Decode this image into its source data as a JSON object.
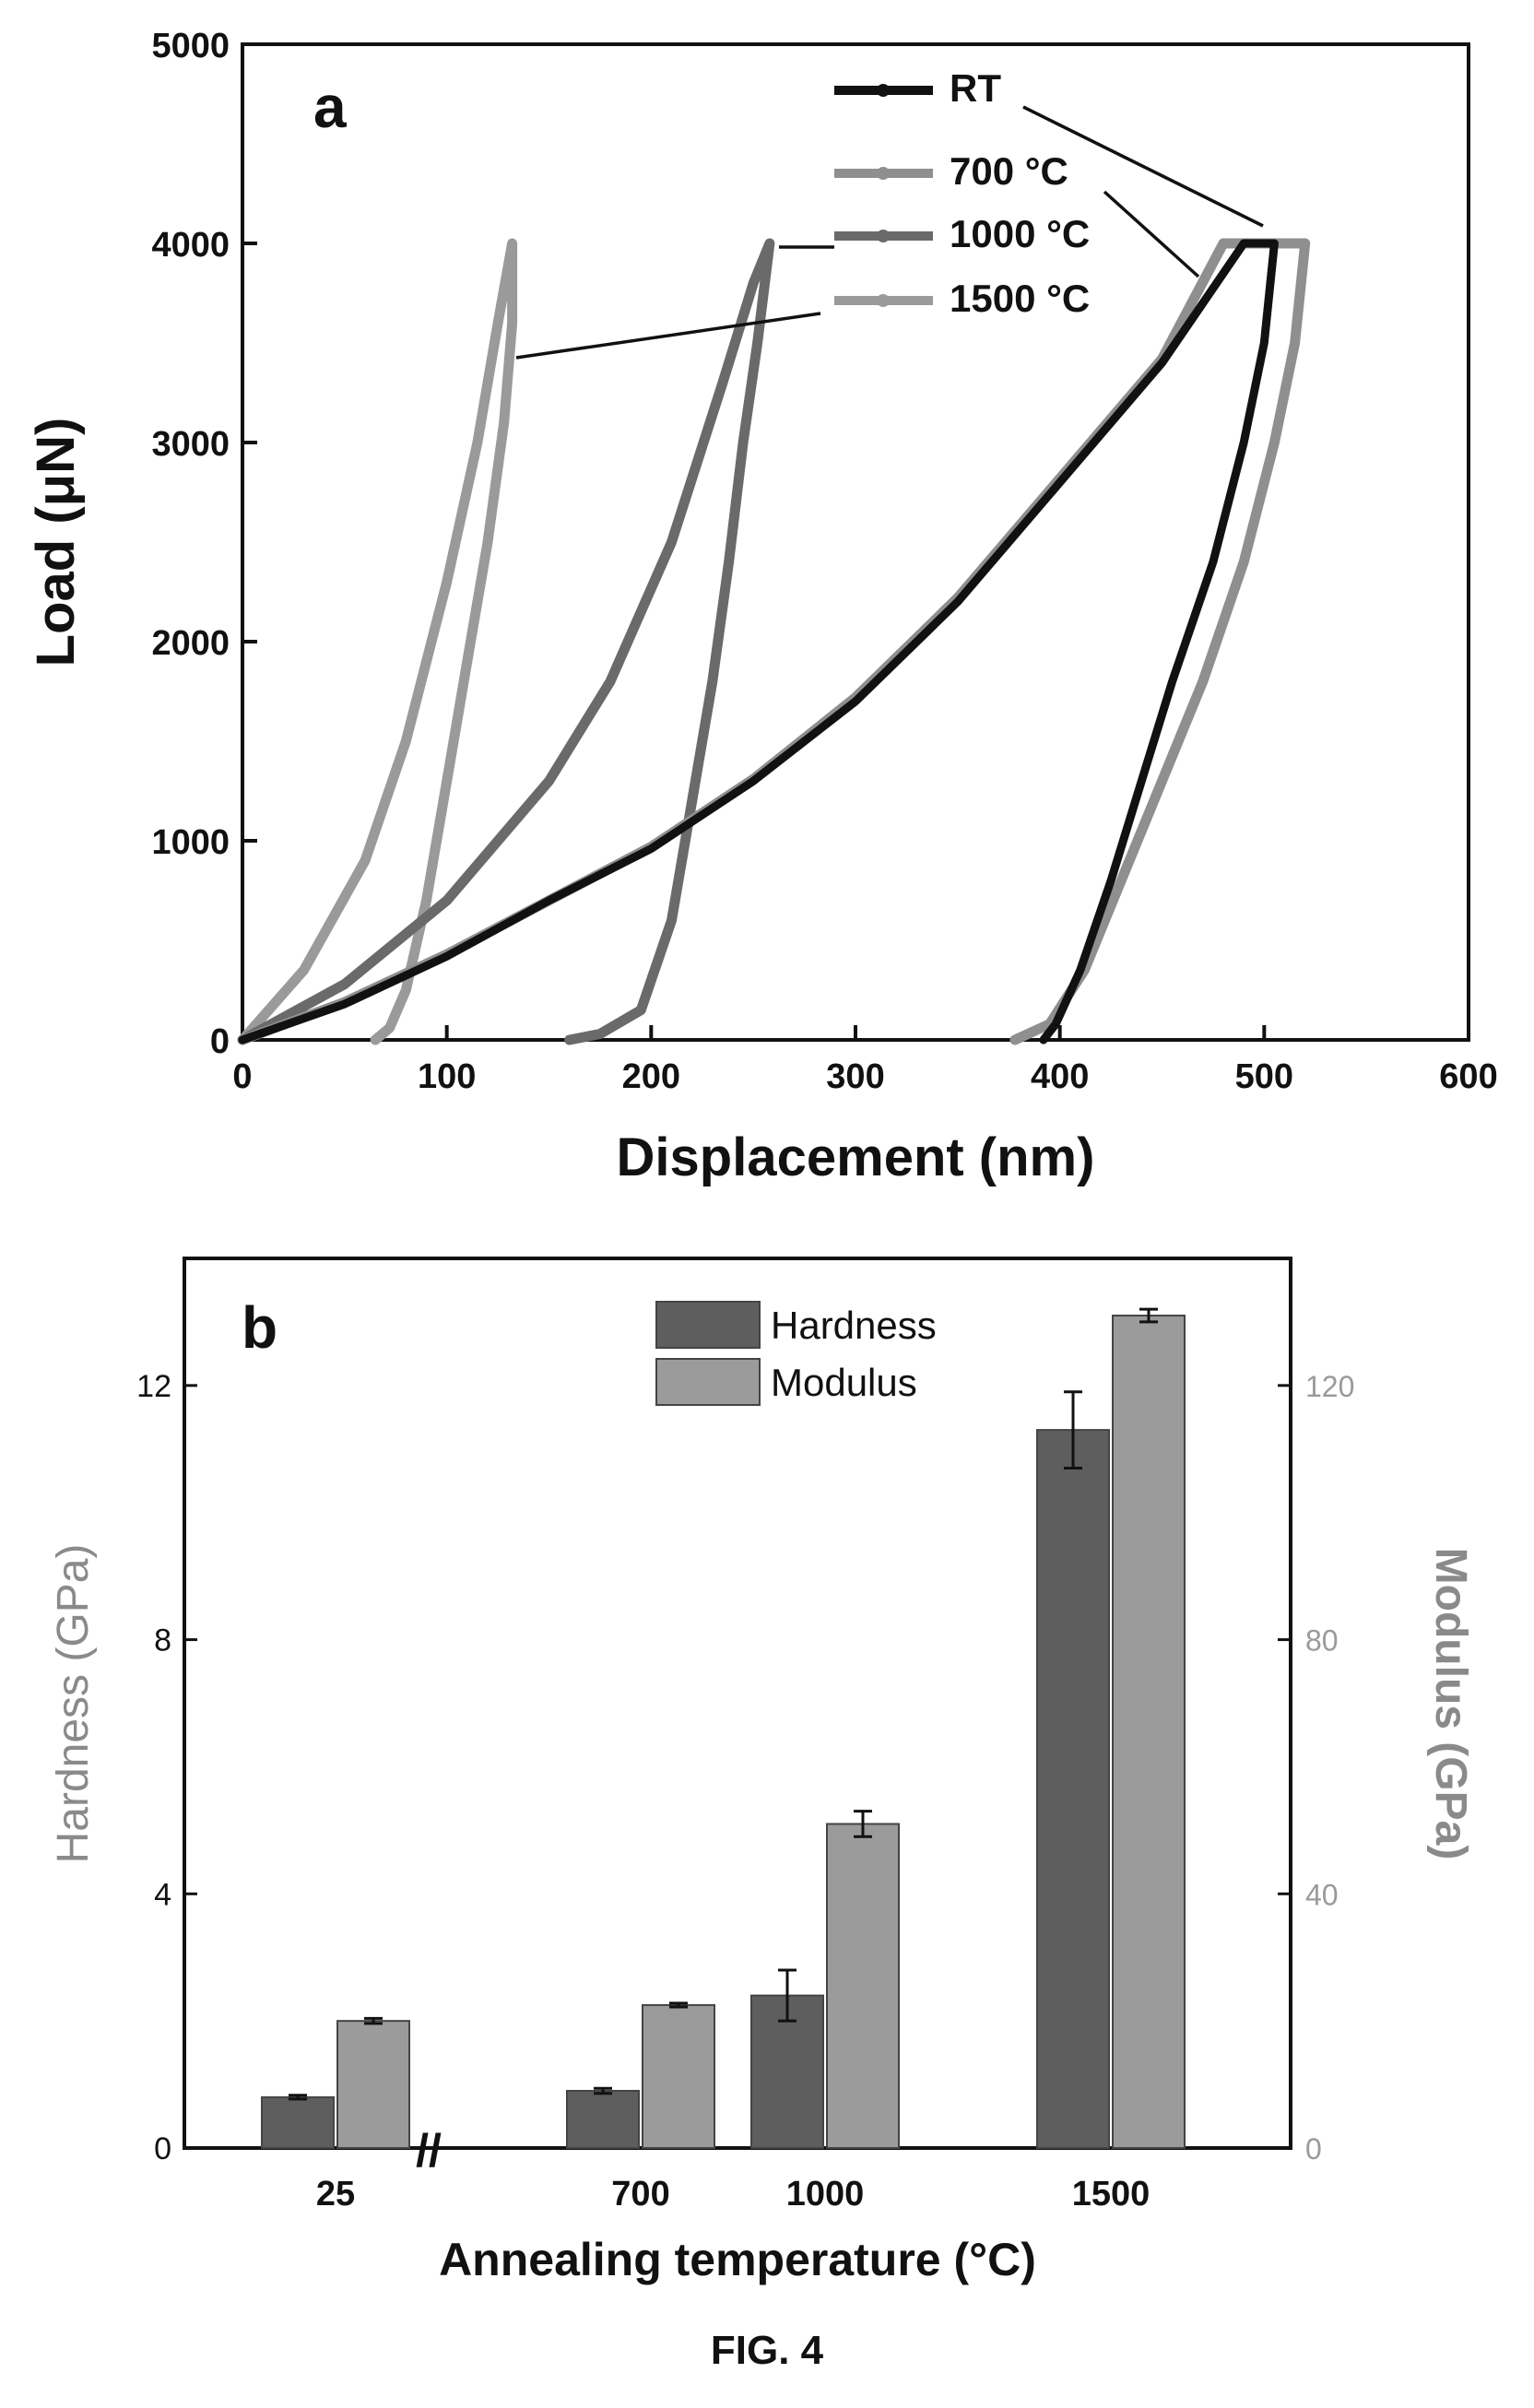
{
  "figure_caption": "FIG. 4",
  "chart_data": [
    {
      "panel_label": "a",
      "type": "line",
      "xlabel": "Displacement (nm)",
      "ylabel": "Load (μN)",
      "xlim": [
        0,
        600
      ],
      "ylim": [
        0,
        5000
      ],
      "xticks": [
        "0",
        "100",
        "200",
        "300",
        "400",
        "500",
        "600"
      ],
      "yticks": [
        "0",
        "1000",
        "2000",
        "3000",
        "4000",
        "5000"
      ],
      "grid": false,
      "legend_placement": "top-right",
      "series": [
        {
          "name": "RT",
          "color": "#111111",
          "x": [
            0,
            50,
            100,
            150,
            200,
            250,
            300,
            350,
            400,
            450,
            490,
            505,
            500,
            490,
            475,
            455,
            440,
            425,
            410,
            398,
            392
          ],
          "y": [
            0,
            180,
            420,
            700,
            960,
            1300,
            1700,
            2200,
            2800,
            3400,
            4000,
            4000,
            3500,
            3000,
            2400,
            1800,
            1300,
            800,
            350,
            80,
            0
          ]
        },
        {
          "name": "700 °C",
          "color": "#8f8f8f",
          "x": [
            0,
            50,
            100,
            150,
            200,
            250,
            300,
            350,
            400,
            450,
            480,
            520,
            515,
            505,
            490,
            470,
            450,
            430,
            412,
            395,
            378
          ],
          "y": [
            0,
            190,
            430,
            700,
            970,
            1310,
            1720,
            2220,
            2820,
            3420,
            4000,
            4000,
            3500,
            3000,
            2400,
            1800,
            1300,
            800,
            350,
            80,
            0
          ]
        },
        {
          "name": "1000 °C",
          "color": "#6a6a6a",
          "x": [
            0,
            50,
            100,
            150,
            180,
            210,
            235,
            250,
            258,
            252,
            245,
            238,
            230,
            220,
            210,
            195,
            175,
            160
          ],
          "y": [
            0,
            280,
            700,
            1300,
            1800,
            2500,
            3300,
            3800,
            4000,
            3500,
            3000,
            2400,
            1800,
            1200,
            600,
            150,
            30,
            0
          ]
        },
        {
          "name": "1500 °C",
          "color": "#9a9a9a",
          "x": [
            0,
            30,
            60,
            80,
            100,
            115,
            125,
            132,
            132,
            128,
            120,
            110,
            100,
            90,
            80,
            72,
            65
          ],
          "y": [
            0,
            350,
            900,
            1500,
            2300,
            3000,
            3600,
            4000,
            3600,
            3100,
            2500,
            1900,
            1300,
            700,
            250,
            60,
            0
          ]
        }
      ]
    },
    {
      "panel_label": "b",
      "type": "bar",
      "xlabel": "Annealing temperature (°C)",
      "ylabel": "Hardness (GPa)",
      "ylabel_right": "Modulus (GPa)",
      "categories": [
        "25",
        "700",
        "1000",
        "1500"
      ],
      "axis_break_marker": "//",
      "ylim": [
        0,
        14
      ],
      "yticks": [
        "0",
        "4",
        "8",
        "12"
      ],
      "ylim_right": [
        0,
        140
      ],
      "yticks_right": [
        "0",
        "40",
        "80",
        "120"
      ],
      "legend_placement": "top-center",
      "series": [
        {
          "name": "Hardness",
          "color": "#5e5e5e",
          "axis": "left",
          "values": [
            0.8,
            0.9,
            2.4,
            11.3
          ],
          "errors": [
            0.03,
            0.04,
            0.4,
            0.6
          ]
        },
        {
          "name": "Modulus",
          "color": "#9b9b9b",
          "axis": "right",
          "values": [
            20,
            22.5,
            51,
            131
          ],
          "errors": [
            0.4,
            0.3,
            2,
            1
          ]
        }
      ]
    }
  ]
}
